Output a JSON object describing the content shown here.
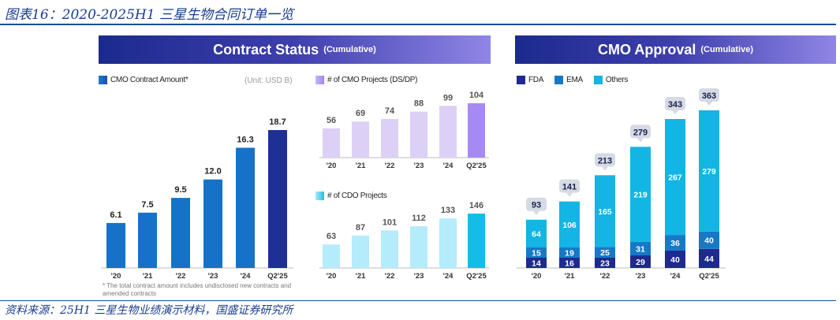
{
  "title": "图表16：2020-2025H1 三星生物合同订单一览",
  "source": "资料来源：25H1 三星生物业绩演示材料，国盛证券研究所",
  "left_header": {
    "title": "Contract Status",
    "sub": "(Cumulative)"
  },
  "right_header": {
    "title": "CMO Approval",
    "sub": "(Cumulative)"
  },
  "colors": {
    "amount": "#1672c8",
    "amount_last": "#1e2f96",
    "cmo": "#dcd0f7",
    "cmo_last": "#a68af3",
    "cdo": "#b4ecfb",
    "cdo_last": "#14bde8",
    "fda": "#1f2a8f",
    "ema": "#1679c8",
    "others": "#12b5e3"
  },
  "chart_data": [
    {
      "type": "bar",
      "title": "CMO Contract Amount*",
      "unit": "(Unit: USD B)",
      "categories": [
        "'20",
        "'21",
        "'22",
        "'23",
        "'24",
        "Q2'25"
      ],
      "values": [
        6.1,
        7.5,
        9.5,
        12.0,
        16.3,
        18.7
      ],
      "value_labels": [
        "6.1",
        "7.5",
        "9.5",
        "12.0",
        "16.3",
        "18.7"
      ],
      "note": "* The total contract amount includes undisclosed new contracts and amended contracts"
    },
    {
      "type": "bar",
      "title": "# of CMO Projects (DS/DP)",
      "categories": [
        "'20",
        "'21",
        "'22",
        "'23",
        "'24",
        "Q2'25"
      ],
      "values": [
        56,
        69,
        74,
        88,
        99,
        104
      ]
    },
    {
      "type": "bar",
      "title": "# of CDO Projects",
      "categories": [
        "'20",
        "'21",
        "'22",
        "'23",
        "'24",
        "Q2'25"
      ],
      "values": [
        63,
        87,
        101,
        112,
        133,
        146
      ]
    },
    {
      "type": "bar",
      "stacked": true,
      "title": "CMO Approval",
      "categories": [
        "'20",
        "'21",
        "'22",
        "'23",
        "'24",
        "Q2'25"
      ],
      "series": [
        {
          "name": "FDA",
          "values": [
            14,
            16,
            23,
            29,
            40,
            44
          ]
        },
        {
          "name": "EMA",
          "values": [
            15,
            19,
            25,
            31,
            36,
            40
          ]
        },
        {
          "name": "Others",
          "values": [
            64,
            106,
            165,
            219,
            267,
            279
          ]
        }
      ],
      "totals": [
        93,
        141,
        213,
        279,
        343,
        363
      ]
    }
  ]
}
